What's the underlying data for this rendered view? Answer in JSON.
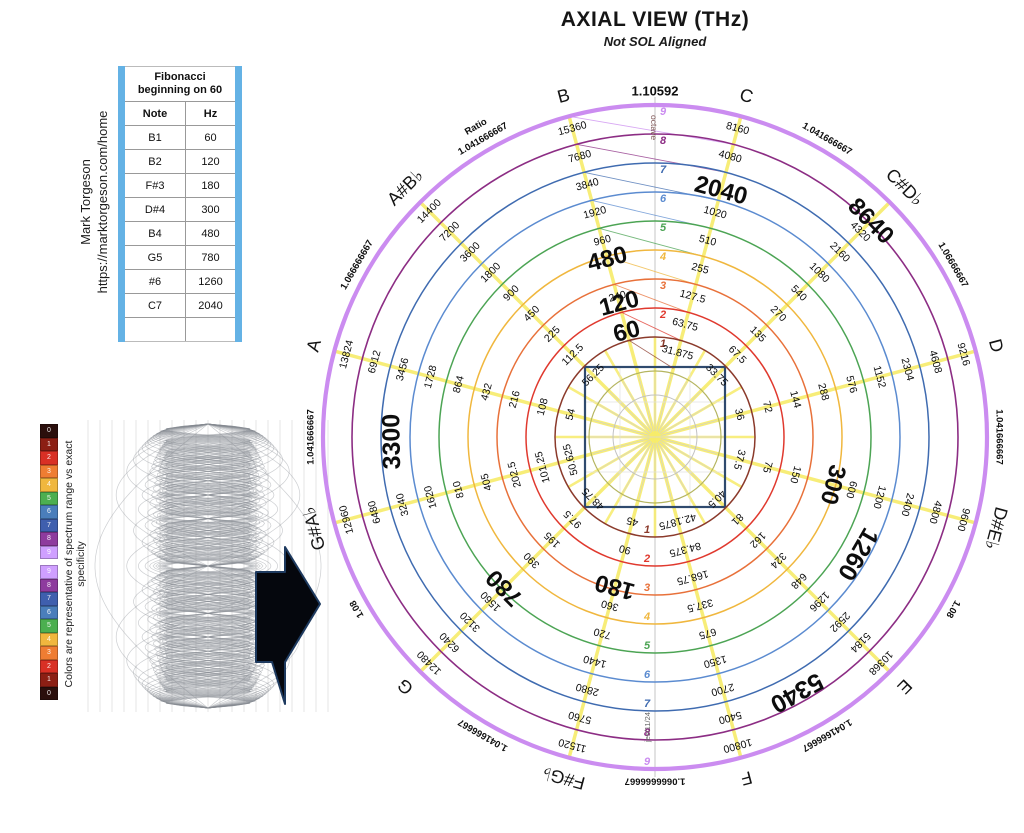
{
  "page_title": {
    "main": "AXIAL VIEW (THz)",
    "subtitle": "Not SOL Aligned"
  },
  "credit": {
    "line1": "Mark Torgeson",
    "line2": "https://marktorgeson.com/home"
  },
  "fibonacci_table": {
    "title": "Fibonacci beginning on 60",
    "columns": [
      "Note",
      "Hz"
    ],
    "rows": [
      [
        "B1",
        "60"
      ],
      [
        "B2",
        "120"
      ],
      [
        "F#3",
        "180"
      ],
      [
        "D#4",
        "300"
      ],
      [
        "B4",
        "480"
      ],
      [
        "G5",
        "780"
      ],
      [
        "#6",
        "1260"
      ],
      [
        "C7",
        "2040"
      ]
    ]
  },
  "spectrum_panel": {
    "caption": "Colors are representative of spectrum range vs exact specificity",
    "scale_top_labels": [
      "0",
      "1",
      "2",
      "3",
      "4",
      "5",
      "6",
      "7",
      "8",
      "9"
    ],
    "scale_bottom_labels": [
      "9",
      "8",
      "7",
      "6",
      "5",
      "4",
      "3",
      "2",
      "1",
      "0"
    ],
    "scale_colors": [
      "#2B0F0C",
      "#8C1F14",
      "#D93025",
      "#EF7D32",
      "#F0B73E",
      "#4CAF50",
      "#4A7EBB",
      "#3F5FAE",
      "#8E3B9E",
      "#CF9FFF"
    ]
  },
  "chart_data": {
    "type": "radial-octave-wheel",
    "title": "AXIAL VIEW (THz)",
    "subtitle": "Not SOL Aligned",
    "rings": 9,
    "ring_colors": [
      "#8B3A2B",
      "#E0392E",
      "#E8713A",
      "#F0B73E",
      "#4CA454",
      "#5B8BD0",
      "#3F6BB0",
      "#8C2D84",
      "#CB8CF0"
    ],
    "spoke_color": "#F7EC6A",
    "square_color": "#2F4A6E",
    "octave_axis": {
      "label": "octave",
      "ring_numbers": [
        "1",
        "2",
        "3",
        "4",
        "5",
        "6",
        "7",
        "8",
        "9"
      ],
      "annotation": "jes/11/24"
    },
    "notes": [
      {
        "label": "C",
        "angle": 75,
        "values": [
          "31.875",
          "63.75",
          "127.5",
          "255",
          "510",
          "1020",
          "2040",
          "4080",
          "8160"
        ],
        "bold": [
          7
        ]
      },
      {
        "label": "C#D♭",
        "angle": 45,
        "values": [
          "33.75",
          "67.5",
          "135",
          "270",
          "540",
          "1080",
          "2160",
          "4320",
          "8640"
        ],
        "bold": [
          9
        ]
      },
      {
        "label": "D",
        "angle": 15,
        "values": [
          "36",
          "72",
          "144",
          "288",
          "576",
          "1152",
          "2304",
          "4608",
          "9216"
        ],
        "bold": []
      },
      {
        "label": "D#E♭",
        "angle": -15,
        "values": [
          "37.5",
          "75",
          "150",
          "300",
          "600",
          "1200",
          "2400",
          "4800",
          "9600"
        ],
        "bold": [
          4
        ]
      },
      {
        "label": "E",
        "angle": -45,
        "values": [
          "40.5",
          "81",
          "162",
          "324",
          "648",
          "1296",
          "2592",
          "5184",
          "10368"
        ],
        "bold": []
      },
      {
        "label": "F",
        "angle": -75,
        "values": [
          "42.1875",
          "84.375",
          "168.75",
          "337.5",
          "675",
          "1350",
          "2700",
          "5400",
          "10800"
        ],
        "bold": []
      },
      {
        "label": "F#G♭",
        "angle": -105,
        "values": [
          "45",
          "90",
          "180",
          "360",
          "720",
          "1440",
          "2880",
          "5760",
          "11520"
        ],
        "bold": [
          3
        ]
      },
      {
        "label": "G",
        "angle": -135,
        "values": [
          "48.75",
          "97.5",
          "195",
          "390",
          "780",
          "1560",
          "3120",
          "6240",
          "12480"
        ],
        "bold": [
          5
        ]
      },
      {
        "label": "G#A♭",
        "angle": -165,
        "values": [
          "50.625",
          "101.25",
          "202.5",
          "405",
          "810",
          "1620",
          "3240",
          "6480",
          "12960"
        ],
        "bold": []
      },
      {
        "label": "A",
        "angle": 165,
        "values": [
          "54",
          "108",
          "216",
          "432",
          "864",
          "1728",
          "3456",
          "6912",
          "13824"
        ],
        "bold": []
      },
      {
        "label": "A#B♭",
        "angle": 135,
        "values": [
          "56.25",
          "112.5",
          "225",
          "450",
          "900",
          "1800",
          "3600",
          "7200",
          "14400"
        ],
        "bold": []
      },
      {
        "label": "B",
        "angle": 105,
        "values": [
          "60",
          "120",
          "240",
          "480",
          "960",
          "1920",
          "3840",
          "7680",
          "15360"
        ],
        "bold": [
          1,
          2,
          4
        ]
      }
    ],
    "ratios": [
      {
        "between": [
          "B",
          "C"
        ],
        "value": "1.10592",
        "angle": 90,
        "emphasis": true
      },
      {
        "between": [
          "C",
          "C#D♭"
        ],
        "value": "1.041666667",
        "angle": 60
      },
      {
        "between": [
          "C#D♭",
          "D"
        ],
        "value": "1.06666667",
        "angle": 30
      },
      {
        "between": [
          "D",
          "D#E♭"
        ],
        "value": "1.041666667",
        "angle": 0
      },
      {
        "between": [
          "D#E♭",
          "E"
        ],
        "value": "1.08",
        "angle": -30
      },
      {
        "between": [
          "E",
          "F"
        ],
        "value": "1.041666667",
        "angle": -60
      },
      {
        "between": [
          "F",
          "F#G♭"
        ],
        "value": "1.0666666667",
        "angle": -90
      },
      {
        "between": [
          "F#G♭",
          "G"
        ],
        "value": "1.041666667",
        "angle": -120
      },
      {
        "between": [
          "G",
          "G#A♭"
        ],
        "value": "1.08",
        "angle": -150
      },
      {
        "between": [
          "G#A♭",
          "A"
        ],
        "value": "1.041666667",
        "angle": 180
      },
      {
        "between": [
          "A",
          "A#B♭"
        ],
        "value": "1.066666667",
        "angle": 150
      },
      {
        "between": [
          "A#B♭",
          "B"
        ],
        "value": "1.041666667",
        "angle": 120,
        "prefix": "Ratio"
      }
    ],
    "fibonacci_bold_sequence": [
      "60",
      "120",
      "180",
      "300",
      "480",
      "780",
      "1260",
      "2040",
      "3300",
      "5340",
      "8640"
    ],
    "fibonacci_extra_labels": [
      {
        "value": "1260",
        "between": [
          "D#E♭",
          "E"
        ],
        "angle": -30,
        "ring": 6
      },
      {
        "value": "3300",
        "between": [
          "G#A♭",
          "A"
        ],
        "angle": 181,
        "ring": 7
      },
      {
        "value": "5340",
        "between": [
          "E",
          "F"
        ],
        "angle": -61,
        "ring": 8
      }
    ]
  }
}
